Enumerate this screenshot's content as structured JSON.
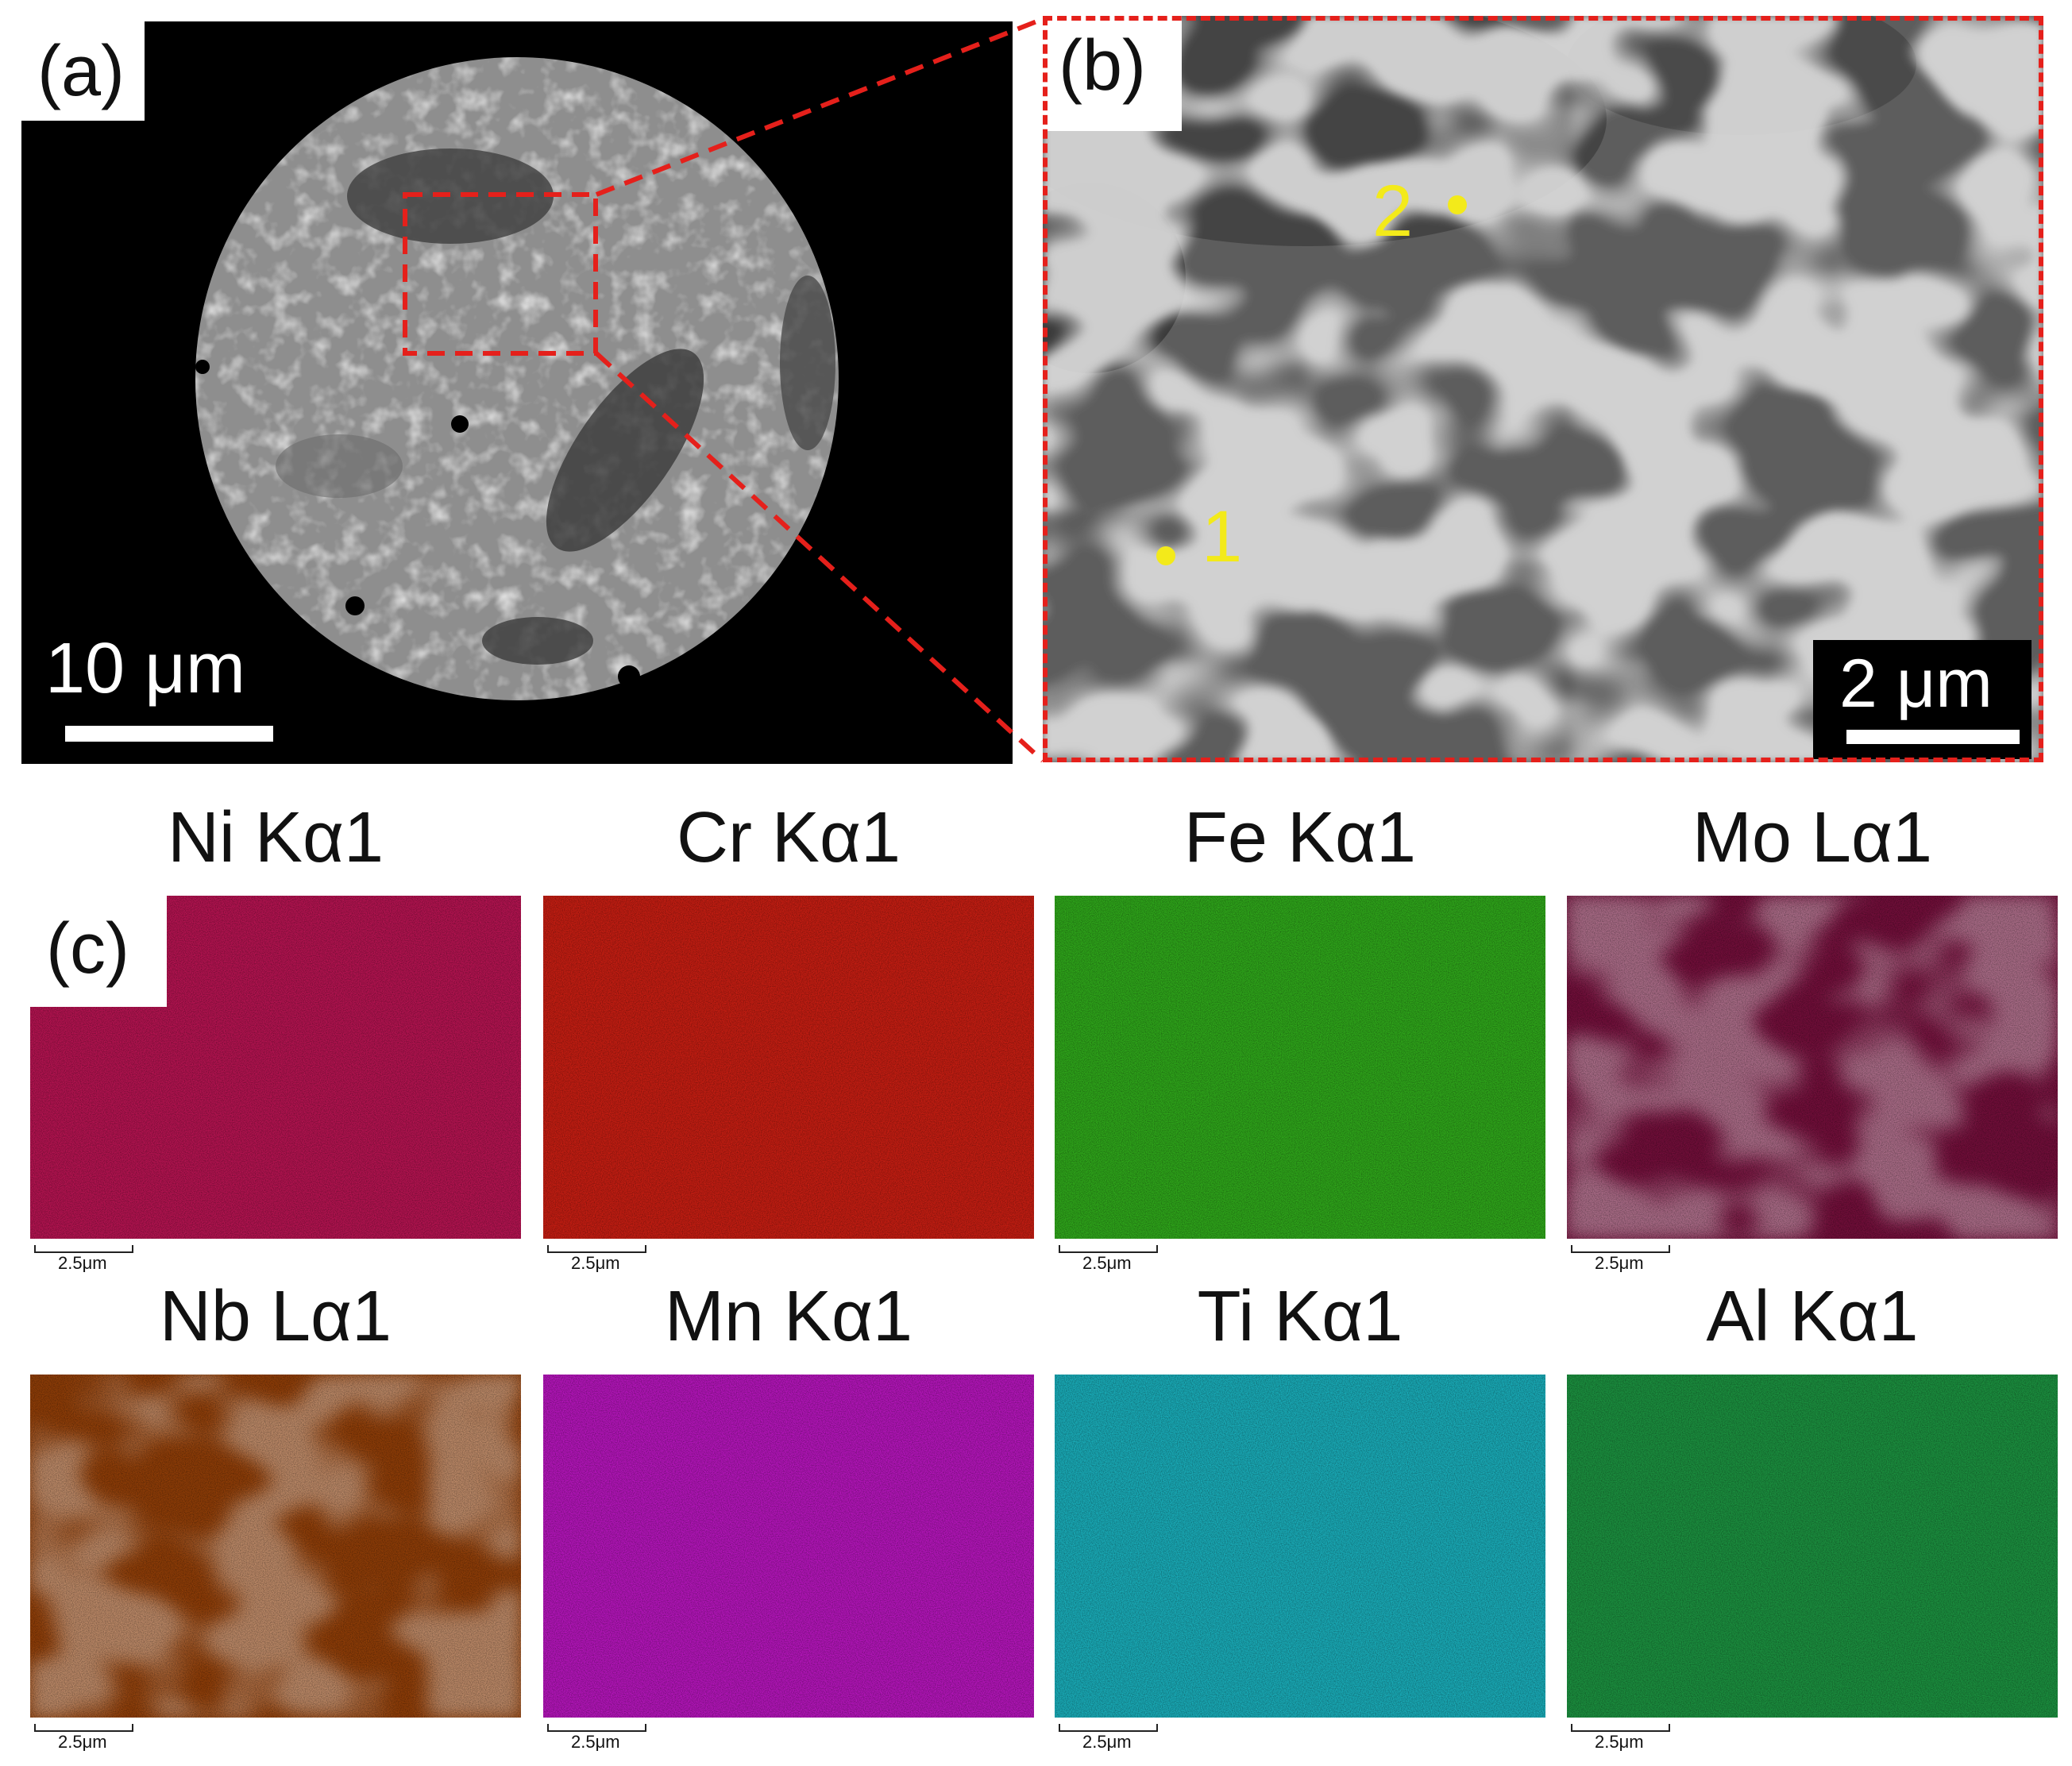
{
  "panel_a": {
    "label": "(a)",
    "scale_bar": "10 μm",
    "colors": {
      "background": "#000000",
      "sample": "#8c8c8c",
      "dendrite_network": "#e8e8e8",
      "dark_phase": "#4a4a4a",
      "inset_box": "#e5201b"
    }
  },
  "panel_b": {
    "label": "(b)",
    "scale_bar": "2 μm",
    "markers": [
      {
        "label": "1"
      },
      {
        "label": "2"
      }
    ],
    "colors": {
      "matrix": "#5c5c5c",
      "interdendritic": "#dcdcdc",
      "marker": "#f3ea1a",
      "frame": "#e5201b"
    }
  },
  "panel_c": {
    "label": "(c)",
    "maps": [
      {
        "element": "Ni Kα1",
        "scale": "2.5μm",
        "color": "#b0134f",
        "pattern": "uniform"
      },
      {
        "element": "Cr Kα1",
        "scale": "2.5μm",
        "color": "#c11d12",
        "pattern": "uniform"
      },
      {
        "element": "Fe Kα1",
        "scale": "2.5μm",
        "color": "#2ea31a",
        "pattern": "uniform"
      },
      {
        "element": "Mo Lα1",
        "scale": "2.5μm",
        "color": "#9c1450",
        "pattern": "segregated"
      },
      {
        "element": "Nb Lα1",
        "scale": "2.5μm",
        "color": "#c2540a",
        "pattern": "segregated"
      },
      {
        "element": "Mn Kα1",
        "scale": "2.5μm",
        "color": "#b015b6",
        "pattern": "uniform"
      },
      {
        "element": "Ti Kα1",
        "scale": "2.5μm",
        "color": "#19a8b4",
        "pattern": "uniform"
      },
      {
        "element": "Al Kα1",
        "scale": "2.5μm",
        "color": "#1b8d3e",
        "pattern": "uniform"
      }
    ]
  }
}
